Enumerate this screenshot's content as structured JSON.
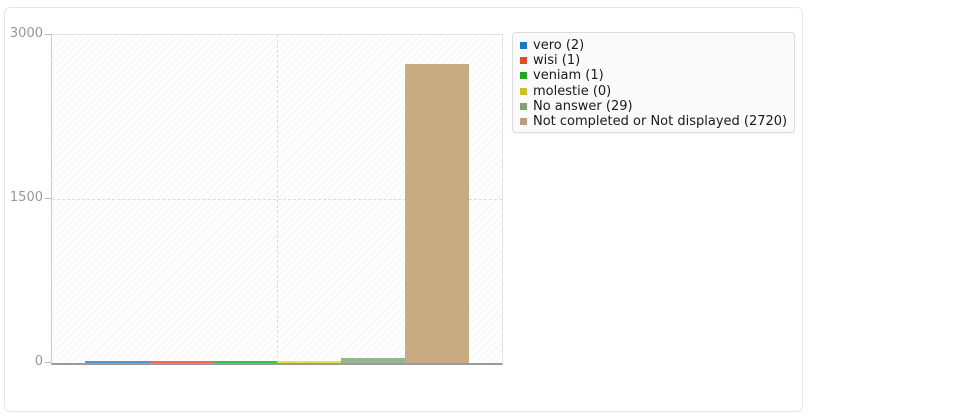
{
  "chart_data": {
    "type": "bar",
    "title": "",
    "y_axis": {
      "range": [
        0,
        3000
      ],
      "ticks": [
        0,
        1500,
        3000
      ],
      "tick_labels": [
        "0",
        "1500",
        "3000"
      ]
    },
    "x_axis": {
      "tick_labels": []
    },
    "grid": {
      "hatched_background": true,
      "horizontal_dashed_line_at": 1500,
      "vertical_dashed_line_at_center": true
    },
    "legend_position": "right",
    "categories": [
      "vero",
      "wisi",
      "veniam",
      "molestie",
      "No answer",
      "Not completed or Not displayed"
    ],
    "values": [
      2,
      1,
      1,
      0,
      29,
      2720
    ],
    "series": [
      {
        "name": "vero",
        "label": "vero (2)",
        "value": 2,
        "legend_color": "#1d76c4",
        "bar_color": "#4e95dc"
      },
      {
        "name": "wisi",
        "label": "wisi (1)",
        "value": 1,
        "legend_color": "#d4512a",
        "bar_color": "#f26a4c"
      },
      {
        "name": "veniam",
        "label": "veniam (1)",
        "value": 1,
        "legend_color": "#1ea81e",
        "bar_color": "#32c93a"
      },
      {
        "name": "molestie",
        "label": "molestie (0)",
        "value": 0,
        "legend_color": "#c9bf28",
        "bar_color": "#e6e242"
      },
      {
        "name": "no-answer",
        "label": "No answer (29)",
        "value": 29,
        "legend_color": "#83a273",
        "bar_color": "#92b78a"
      },
      {
        "name": "not-completed",
        "label": "Not completed or Not displayed (2720)",
        "value": 2720,
        "legend_color": "#b99d80",
        "bar_color": "#c9ab81"
      }
    ]
  }
}
